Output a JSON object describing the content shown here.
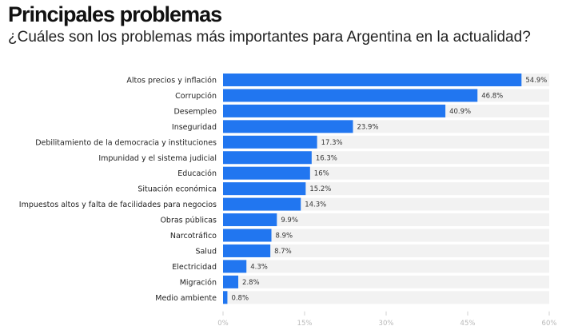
{
  "chart_data": {
    "type": "bar",
    "orientation": "horizontal",
    "title": "Principales problemas",
    "subtitle": "¿Cuáles son los problemas más importantes para Argentina en la actualidad?",
    "xlabel": "",
    "ylabel": "",
    "xlim": [
      0,
      60
    ],
    "x_ticks": [
      0,
      15,
      30,
      45,
      60
    ],
    "x_tick_labels": [
      "0%",
      "15%",
      "30%",
      "45%",
      "60%"
    ],
    "grid": false,
    "legend": "none",
    "bar_color": "#2176f0",
    "track_color": "#f2f2f2",
    "categories": [
      "Altos precios y inflación",
      "Corrupción",
      "Desempleo",
      "Inseguridad",
      "Debilitamiento de la democracia y instituciones",
      "Impunidad y el sistema judicial",
      "Educación",
      "Situación económica",
      "Impuestos altos y falta de facilidades para negocios",
      "Obras públicas",
      "Narcotráfico",
      "Salud",
      "Electricidad",
      "Migración",
      "Medio ambiente"
    ],
    "values": [
      54.9,
      46.8,
      40.9,
      23.9,
      17.3,
      16.3,
      16,
      15.2,
      14.3,
      9.9,
      8.9,
      8.7,
      4.3,
      2.8,
      0.8
    ],
    "value_labels": [
      "54.9%",
      "46.8%",
      "40.9%",
      "23.9%",
      "17.3%",
      "16.3%",
      "16%",
      "15.2%",
      "14.3%",
      "9.9%",
      "8.9%",
      "8.7%",
      "4.3%",
      "2.8%",
      "0.8%"
    ]
  }
}
